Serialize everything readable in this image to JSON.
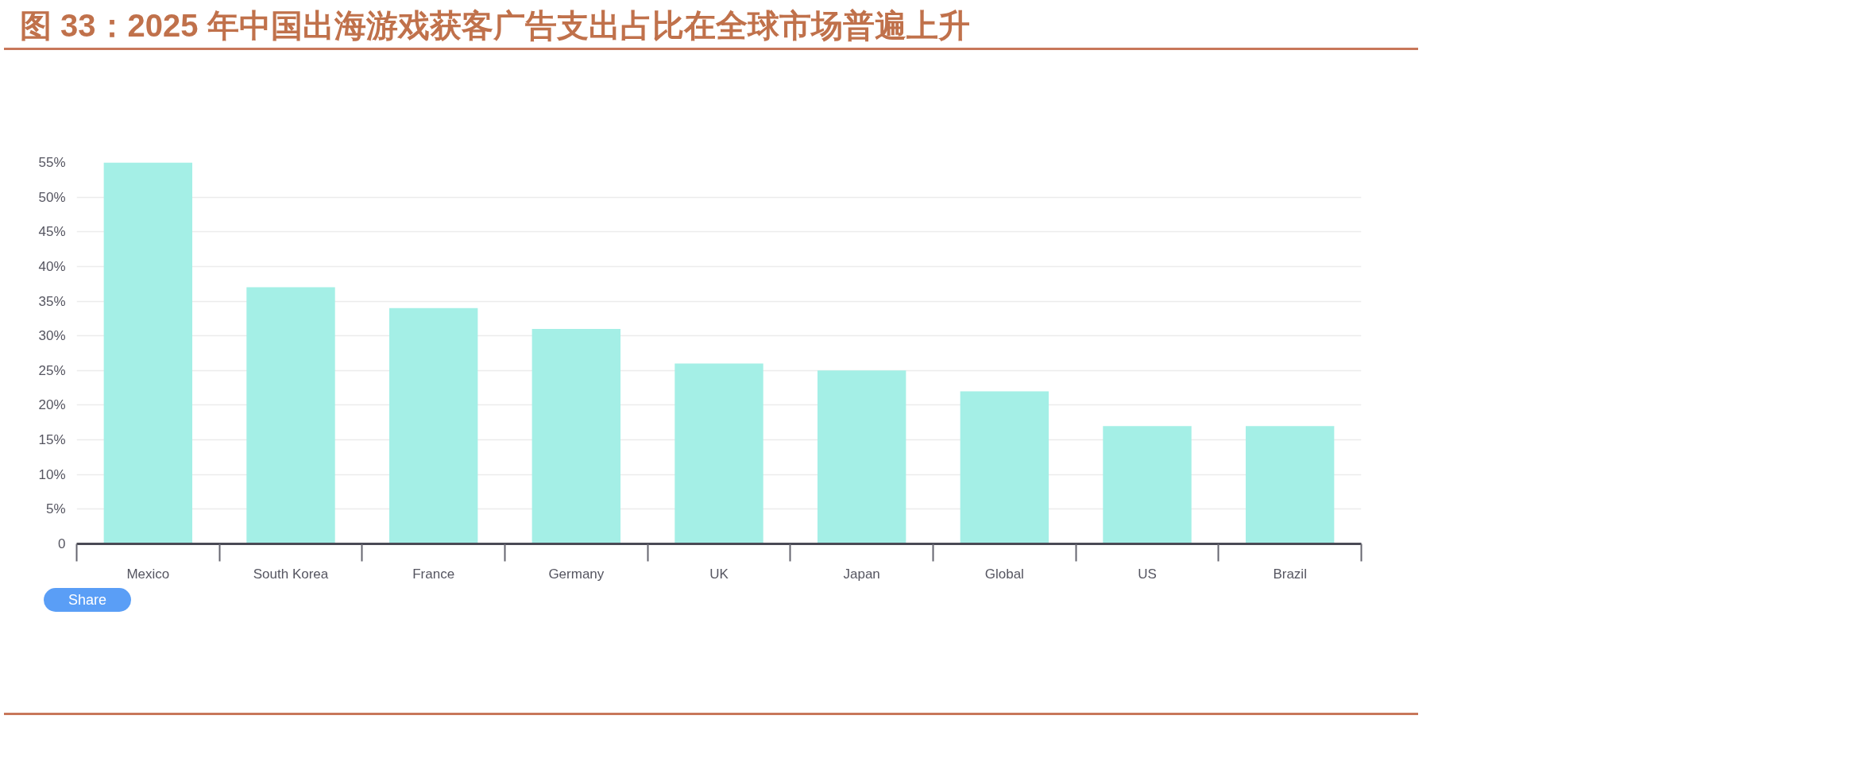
{
  "chart_data": {
    "type": "bar",
    "title": "图 33：2025 年中国出海游戏获客广告支出占比在全球市场普遍上升",
    "categories": [
      "Mexico",
      "South Korea",
      "France",
      "Germany",
      "UK",
      "Japan",
      "Global",
      "US",
      "Brazil"
    ],
    "values": [
      55,
      37,
      34,
      31,
      26,
      25,
      22,
      17,
      17
    ],
    "color": "#a4efe6",
    "ylim": [
      0,
      55
    ],
    "yticks": [
      0,
      {
        "value": 5,
        "label": "5%"
      },
      {
        "value": 10,
        "label": "10%"
      },
      {
        "value": 15,
        "label": "15%"
      },
      {
        "value": 20,
        "label": "20%"
      },
      {
        "value": 25,
        "label": "25%"
      },
      {
        "value": 30,
        "label": "30%"
      },
      {
        "value": 35,
        "label": "35%"
      },
      {
        "value": 40,
        "label": "40%"
      },
      {
        "value": 45,
        "label": "45%"
      },
      {
        "value": 50,
        "label": "50%"
      },
      {
        "value": 55,
        "label": "55%"
      }
    ],
    "grid": "y",
    "annotations": [
      "Share"
    ]
  }
}
